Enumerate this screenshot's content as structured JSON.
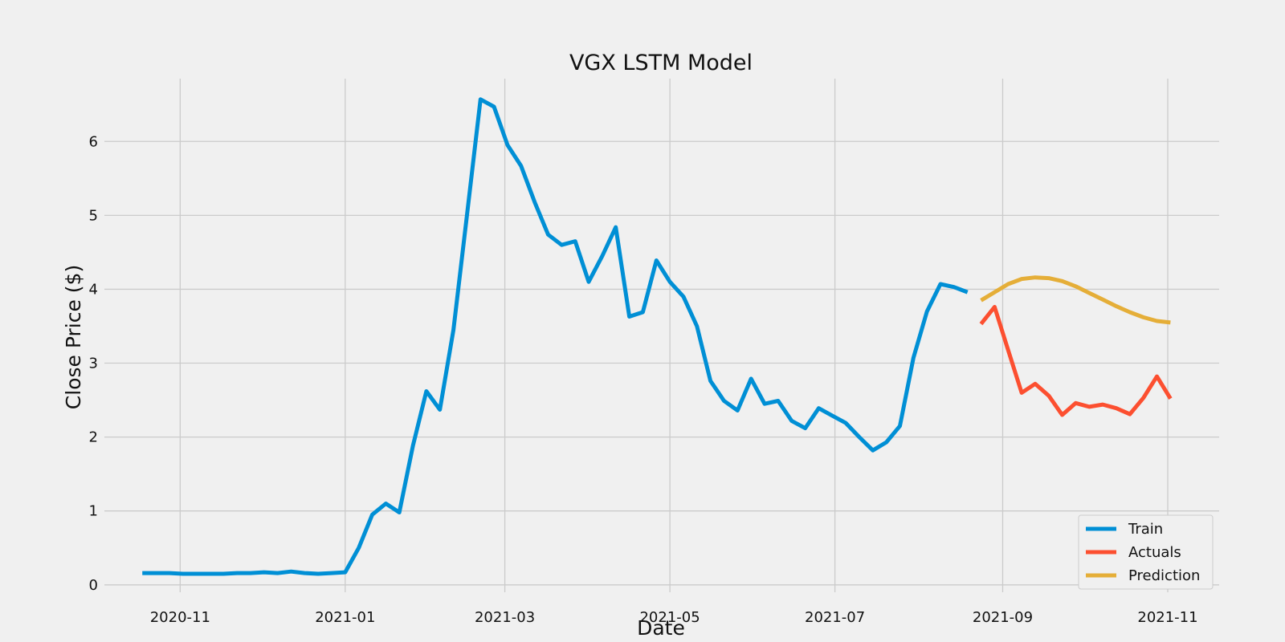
{
  "chart_data": {
    "type": "line",
    "title": "VGX LSTM Model",
    "xlabel": "Date",
    "ylabel": "Close Price ($)",
    "x_axis": {
      "type": "date",
      "range": [
        "2020-10-04",
        "2021-11-20"
      ],
      "ticks": [
        "2020-11-01",
        "2021-01-01",
        "2021-03-01",
        "2021-05-01",
        "2021-07-01",
        "2021-09-01",
        "2021-11-01"
      ],
      "tick_labels": [
        "2020-11",
        "2021-01",
        "2021-03",
        "2021-05",
        "2021-07",
        "2021-09",
        "2021-11"
      ]
    },
    "y_axis": {
      "range": [
        -0.1,
        6.85
      ],
      "ticks": [
        0,
        1,
        2,
        3,
        4,
        5,
        6
      ],
      "tick_labels": [
        "0",
        "1",
        "2",
        "3",
        "4",
        "5",
        "6"
      ]
    },
    "grid": true,
    "legend_position": "bottom-right",
    "series": [
      {
        "name": "Train",
        "color": "#008fd5",
        "x": [
          "2020-10-18",
          "2020-10-23",
          "2020-10-28",
          "2020-11-02",
          "2020-11-07",
          "2020-11-12",
          "2020-11-17",
          "2020-11-22",
          "2020-11-27",
          "2020-12-02",
          "2020-12-07",
          "2020-12-12",
          "2020-12-17",
          "2020-12-22",
          "2020-12-27",
          "2021-01-01",
          "2021-01-06",
          "2021-01-11",
          "2021-01-16",
          "2021-01-21",
          "2021-01-26",
          "2021-01-31",
          "2021-02-05",
          "2021-02-10",
          "2021-02-15",
          "2021-02-20",
          "2021-02-25",
          "2021-03-02",
          "2021-03-07",
          "2021-03-12",
          "2021-03-17",
          "2021-03-22",
          "2021-03-27",
          "2021-04-01",
          "2021-04-06",
          "2021-04-11",
          "2021-04-16",
          "2021-04-21",
          "2021-04-26",
          "2021-05-01",
          "2021-05-06",
          "2021-05-11",
          "2021-05-16",
          "2021-05-21",
          "2021-05-26",
          "2021-05-31",
          "2021-06-05",
          "2021-06-10",
          "2021-06-15",
          "2021-06-20",
          "2021-06-25",
          "2021-06-30",
          "2021-07-05",
          "2021-07-10",
          "2021-07-15",
          "2021-07-20",
          "2021-07-25",
          "2021-07-30",
          "2021-08-04",
          "2021-08-09",
          "2021-08-14",
          "2021-08-19"
        ],
        "values": [
          0.16,
          0.16,
          0.16,
          0.15,
          0.15,
          0.15,
          0.15,
          0.16,
          0.16,
          0.17,
          0.16,
          0.18,
          0.16,
          0.15,
          0.16,
          0.17,
          0.5,
          0.95,
          1.1,
          0.98,
          1.88,
          2.62,
          2.37,
          3.45,
          5.0,
          6.57,
          6.47,
          5.95,
          5.67,
          5.18,
          4.74,
          4.6,
          4.65,
          4.1,
          4.45,
          4.84,
          3.63,
          3.69,
          4.39,
          4.1,
          3.9,
          3.5,
          2.76,
          2.49,
          2.36,
          2.79,
          2.45,
          2.49,
          2.22,
          2.12,
          2.39,
          2.29,
          2.19,
          2.0,
          1.82,
          1.93,
          2.15,
          3.07,
          3.7,
          4.07,
          4.03,
          3.96
        ]
      },
      {
        "name": "Actuals",
        "color": "#fc4f30",
        "x": [
          "2021-08-24",
          "2021-08-29",
          "2021-09-03",
          "2021-09-08",
          "2021-09-13",
          "2021-09-18",
          "2021-09-23",
          "2021-09-28",
          "2021-10-03",
          "2021-10-08",
          "2021-10-13",
          "2021-10-18",
          "2021-10-23",
          "2021-10-28",
          "2021-11-02"
        ],
        "values": [
          3.53,
          3.76,
          3.18,
          2.6,
          2.72,
          2.56,
          2.3,
          2.46,
          2.41,
          2.44,
          2.39,
          2.31,
          2.53,
          2.82,
          2.52
        ]
      },
      {
        "name": "Prediction",
        "color": "#e5ae38",
        "x": [
          "2021-08-24",
          "2021-08-29",
          "2021-09-03",
          "2021-09-08",
          "2021-09-13",
          "2021-09-18",
          "2021-09-23",
          "2021-09-28",
          "2021-10-03",
          "2021-10-08",
          "2021-10-13",
          "2021-10-18",
          "2021-10-23",
          "2021-10-28",
          "2021-11-02"
        ],
        "values": [
          3.85,
          3.96,
          4.07,
          4.14,
          4.16,
          4.15,
          4.11,
          4.04,
          3.95,
          3.86,
          3.77,
          3.69,
          3.62,
          3.57,
          3.55
        ]
      }
    ]
  }
}
